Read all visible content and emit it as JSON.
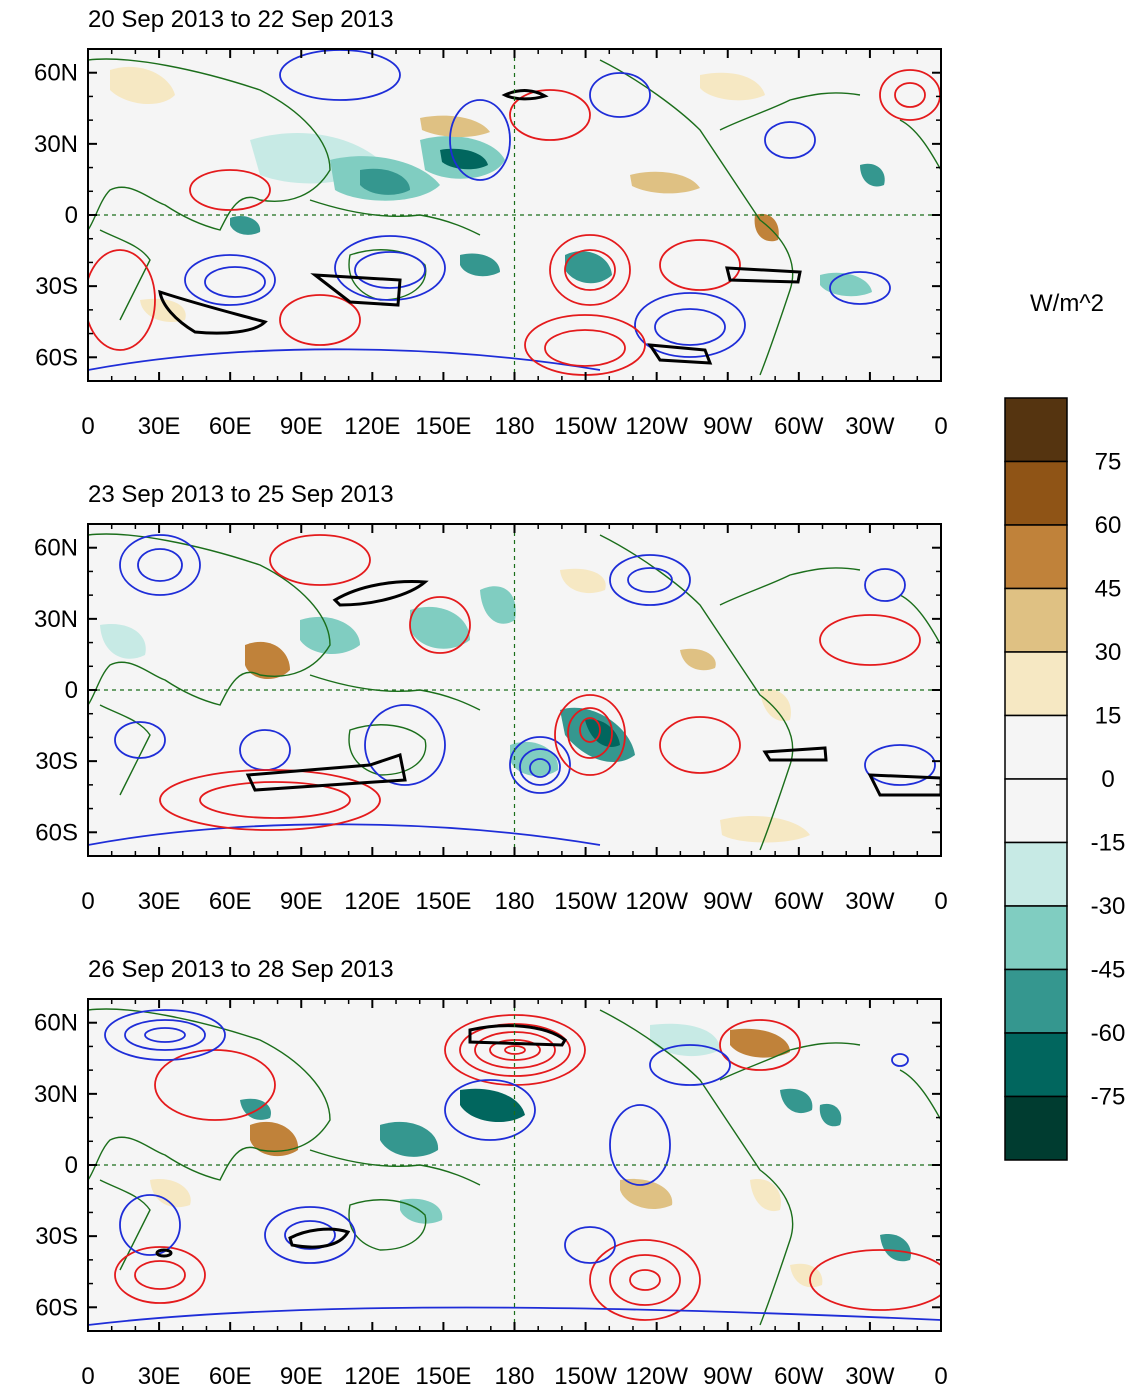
{
  "panels": [
    {
      "title": "20 Sep 2013 to 22 Sep 2013"
    },
    {
      "title": "23 Sep 2013 to 25 Sep 2013"
    },
    {
      "title": "26 Sep 2013 to 28 Sep 2013"
    }
  ],
  "axes": {
    "x_ticks": [
      "0",
      "30E",
      "60E",
      "90E",
      "120E",
      "150E",
      "180",
      "150W",
      "120W",
      "90W",
      "60W",
      "30W",
      "0"
    ],
    "y_ticks": [
      "60N",
      "30N",
      "0",
      "30S",
      "60S"
    ],
    "lat_range": [
      -70,
      70
    ],
    "lon_range": [
      0,
      360
    ]
  },
  "colorbar": {
    "unit": "W/m^2",
    "labels": [
      "75",
      "60",
      "45",
      "30",
      "15",
      "0",
      "-15",
      "-30",
      "-45",
      "-60",
      "-75"
    ],
    "colors": [
      "#553410",
      "#8f5416",
      "#c0823a",
      "#dfc183",
      "#f6e8c3",
      "#f5f5f5",
      "#f5f5f5",
      "#c7eae5",
      "#80cdc1",
      "#35978f",
      "#01665e",
      "#003c30"
    ]
  },
  "contour_colors": {
    "positive": "#e41a1c",
    "negative": "#1e2dd8",
    "significant": "#000000",
    "coast": "#1b6e1b"
  }
}
